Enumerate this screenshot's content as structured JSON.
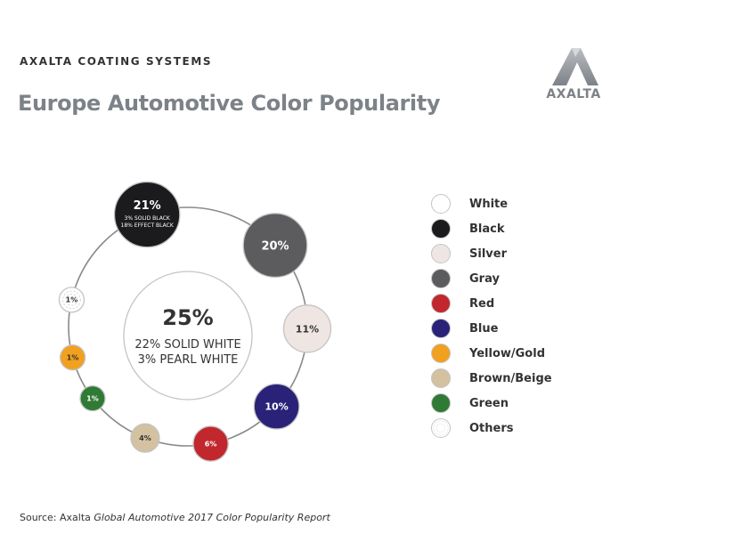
{
  "header": {
    "company": "AXALTA COATING SYSTEMS",
    "title": "Europe Automotive Color Popularity",
    "logo_text": "AXALTA"
  },
  "colors": {
    "White": "#ffffff",
    "Black": "#1b1b1e",
    "Silver": "#efe6e4",
    "Gray": "#5c5b5d",
    "Red": "#c1272d",
    "Blue": "#2a2278",
    "Yellow/Gold": "#f2a01f",
    "Brown/Beige": "#d3c1a0",
    "Green": "#2f7a35",
    "Others": "#ffffff",
    "ring": "#8a8a8a"
  },
  "chart_data": {
    "type": "bubble",
    "title": "Europe Automotive Color Popularity",
    "unit": "%",
    "categories": [
      "White",
      "Black",
      "Gray",
      "Silver",
      "Blue",
      "Red",
      "Brown/Beige",
      "Green",
      "Yellow/Gold",
      "Others"
    ],
    "values": [
      25,
      21,
      20,
      11,
      10,
      6,
      4,
      1,
      1,
      1
    ],
    "labels": [
      "25%",
      "21%",
      "20%",
      "11%",
      "10%",
      "6%",
      "4%",
      "1%",
      "1%",
      "1%"
    ],
    "breakdowns": {
      "White": [
        "22% SOLID WHITE",
        "3% PEARL WHITE"
      ],
      "Black": [
        "3% SOLID BLACK",
        "18% EFFECT BLACK"
      ]
    }
  },
  "legend": {
    "position": "right",
    "items": [
      {
        "label": "White",
        "color_key": "White"
      },
      {
        "label": "Black",
        "color_key": "Black"
      },
      {
        "label": "Silver",
        "color_key": "Silver"
      },
      {
        "label": "Gray",
        "color_key": "Gray"
      },
      {
        "label": "Red",
        "color_key": "Red"
      },
      {
        "label": "Blue",
        "color_key": "Blue"
      },
      {
        "label": "Yellow/Gold",
        "color_key": "Yellow/Gold"
      },
      {
        "label": "Brown/Beige",
        "color_key": "Brown/Beige"
      },
      {
        "label": "Green",
        "color_key": "Green"
      },
      {
        "label": "Others",
        "color_key": "Others"
      }
    ]
  },
  "source": {
    "prefix": "Source: Axalta ",
    "report": "Global Automotive 2017 Color Popularity Report"
  }
}
